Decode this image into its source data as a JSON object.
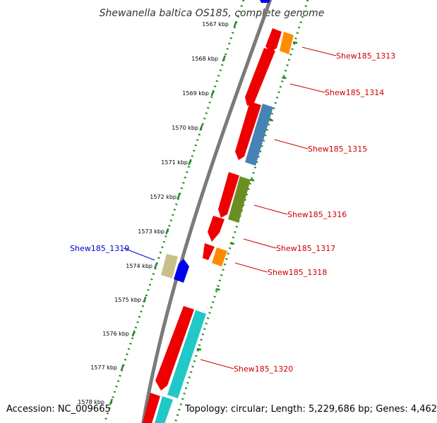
{
  "title": "Shewanella baltica OS185, complete genome",
  "accession": "Accession: NC_009665",
  "summary": "Topology: circular; Length: 5,229,686 bp; Genes: 4,462",
  "colors": {
    "backbone": "#888888",
    "ruler": "#228B22",
    "tick_label": "#000000",
    "gene_label_plus": "#cc0000",
    "gene_label_minus": "#0000cc",
    "cds": "#ff0000"
  },
  "ruler_labels": [
    "1567 kbp",
    "1568 kbp",
    "1569 kbp",
    "1570 kbp",
    "1571 kbp",
    "1572 kbp",
    "1573 kbp",
    "1574 kbp",
    "1575 kbp",
    "1576 kbp",
    "1577 kbp",
    "1578 kbp"
  ],
  "gene_labels": [
    "Shew185_1313",
    "Shew185_1314",
    "Shew185_1315",
    "Shew185_1316",
    "Shew185_1317",
    "Shew185_1318",
    "Shew185_1319",
    "Shew185_1320"
  ]
}
